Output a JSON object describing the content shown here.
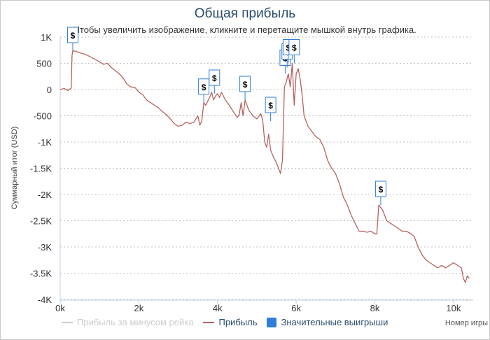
{
  "title": "Общая прибыль",
  "subtitle": "Чтобы увеличить изображение, кликните и перетащите мышкой внутрь графика.",
  "colors": {
    "profit": "#b5625f",
    "net": "#c8c8c8",
    "flags": "#2f7ed8",
    "grid": "#c0c0c0",
    "title": "#274b6d"
  },
  "legend": {
    "net_label": "Прибыль за минусом рейка",
    "profit_label": "Прибыль",
    "flags_label": "Значительные выигрыши"
  },
  "chart_data": {
    "type": "line",
    "title": "Общая прибыль",
    "xlabel": "Номер игры",
    "ylabel": "Суммарный итог (USD)",
    "xlim": [
      0,
      10500
    ],
    "ylim": [
      -4000,
      1000
    ],
    "x_ticks": [
      0,
      2000,
      4000,
      6000,
      8000,
      10000
    ],
    "x_tick_labels": [
      "0k",
      "2k",
      "4k",
      "6k",
      "8k",
      "10k"
    ],
    "y_ticks": [
      1000,
      500,
      0,
      -500,
      -1000,
      -1500,
      -2000,
      -2500,
      -3000,
      -3500,
      -4000
    ],
    "y_tick_labels": [
      "1K",
      "500",
      "0",
      "-500",
      "-1K",
      "-1.5K",
      "-2K",
      "-2.5K",
      "-3K",
      "-3.5K",
      "-4K"
    ],
    "grid": true,
    "legend_position": "bottom",
    "series": [
      {
        "name": "Прибыль",
        "x": [
          0,
          100,
          200,
          280,
          300,
          320,
          400,
          500,
          600,
          700,
          800,
          900,
          1000,
          1100,
          1200,
          1300,
          1400,
          1500,
          1600,
          1700,
          1800,
          1900,
          2000,
          2100,
          2200,
          2300,
          2400,
          2500,
          2600,
          2700,
          2800,
          2900,
          3000,
          3100,
          3200,
          3300,
          3400,
          3500,
          3550,
          3600,
          3650,
          3700,
          3800,
          3850,
          3900,
          3950,
          4000,
          4050,
          4100,
          4200,
          4300,
          4400,
          4500,
          4550,
          4600,
          4650,
          4700,
          4750,
          4800,
          4900,
          5000,
          5100,
          5150,
          5200,
          5250,
          5300,
          5350,
          5400,
          5500,
          5550,
          5600,
          5650,
          5700,
          5750,
          5780,
          5800,
          5850,
          5900,
          5950,
          6000,
          6050,
          6100,
          6150,
          6200,
          6300,
          6400,
          6500,
          6600,
          6700,
          6800,
          6900,
          7000,
          7100,
          7200,
          7300,
          7400,
          7500,
          7600,
          7700,
          7800,
          7900,
          8000,
          8050,
          8100,
          8150,
          8200,
          8300,
          8400,
          8500,
          8600,
          8700,
          8800,
          8900,
          9000,
          9100,
          9200,
          9300,
          9400,
          9500,
          9600,
          9700,
          9800,
          9900,
          10000,
          10100,
          10200,
          10250,
          10300,
          10350,
          10400
        ],
        "y": [
          0,
          20,
          -20,
          30,
          650,
          740,
          730,
          700,
          680,
          650,
          610,
          570,
          530,
          480,
          500,
          420,
          360,
          300,
          220,
          100,
          50,
          40,
          -50,
          -100,
          -200,
          -250,
          -300,
          -350,
          -420,
          -480,
          -560,
          -650,
          -700,
          -680,
          -620,
          -650,
          -620,
          -500,
          -680,
          -600,
          -250,
          -300,
          -150,
          -50,
          -200,
          -120,
          -80,
          -150,
          -50,
          -200,
          -300,
          -420,
          -530,
          -480,
          -250,
          -500,
          -200,
          -300,
          -400,
          -500,
          -560,
          -460,
          -600,
          -1000,
          -1100,
          -850,
          -1150,
          -1250,
          -1400,
          -1500,
          -1600,
          -1350,
          50,
          150,
          250,
          300,
          50,
          500,
          -300,
          300,
          400,
          200,
          -100,
          -500,
          -700,
          -800,
          -900,
          -950,
          -1100,
          -1350,
          -1500,
          -1600,
          -1800,
          -2050,
          -2200,
          -2400,
          -2550,
          -2700,
          -2700,
          -2720,
          -2700,
          -2750,
          -2750,
          -2200,
          -2250,
          -2300,
          -2500,
          -2550,
          -2600,
          -2650,
          -2700,
          -2700,
          -2740,
          -2800,
          -3000,
          -3150,
          -3250,
          -3300,
          -3350,
          -3400,
          -3350,
          -3400,
          -3350,
          -3300,
          -3350,
          -3400,
          -3600,
          -3680,
          -3550,
          -3600
        ]
      },
      {
        "name": "Значительные выигрыши",
        "type": "flags",
        "x": [
          320,
          3650,
          3920,
          4700,
          5350,
          5720,
          5770,
          5800,
          5950,
          8150
        ],
        "y": [
          740,
          -250,
          -80,
          -200,
          -600,
          300,
          420,
          500,
          500,
          -2200
        ],
        "labels": [
          "$",
          "$",
          "$",
          "$",
          "$",
          "$",
          "$",
          "$",
          "$",
          "$"
        ]
      }
    ]
  }
}
